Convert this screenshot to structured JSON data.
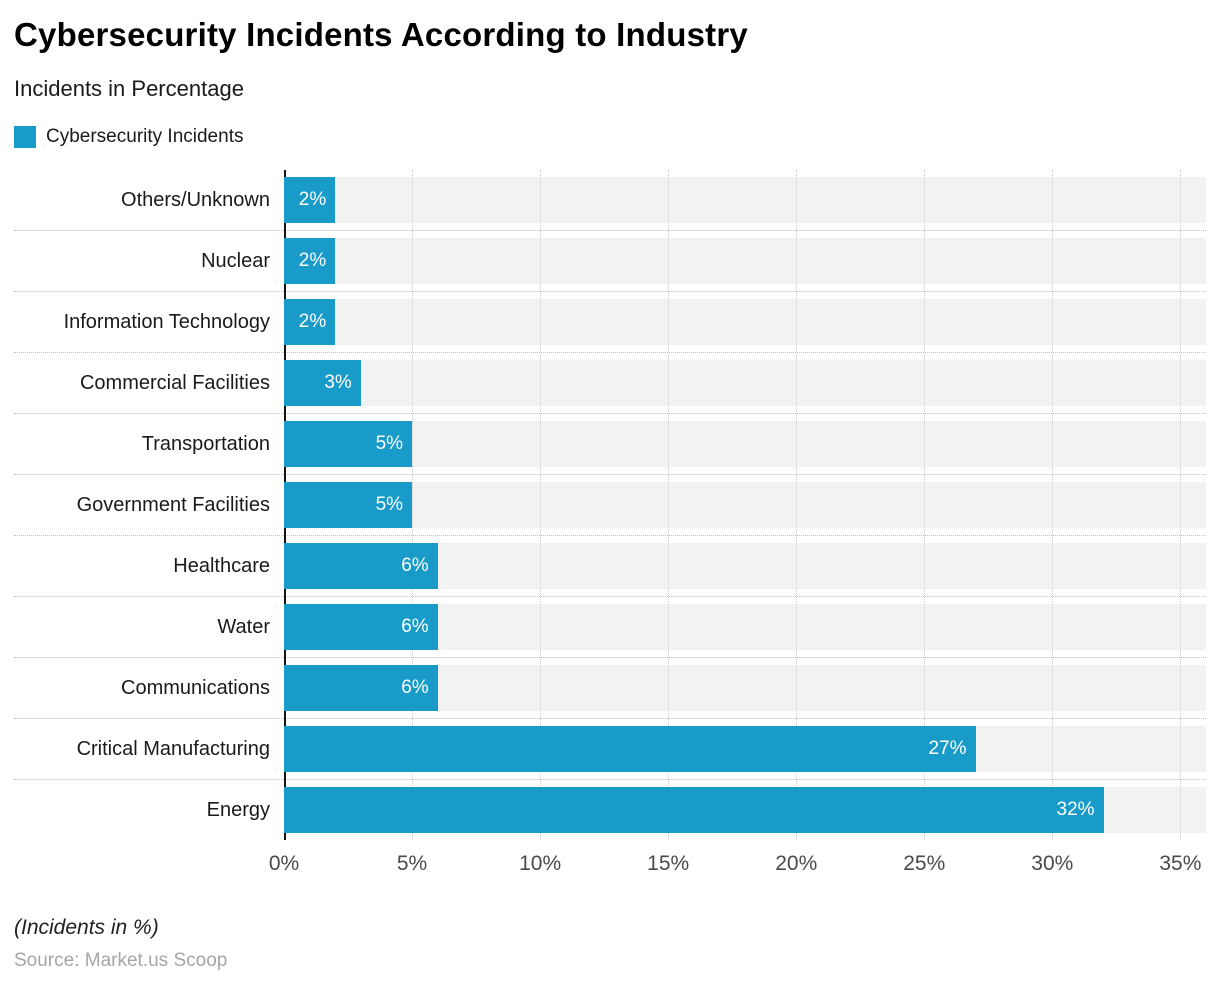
{
  "header": {
    "title": "Cybersecurity Incidents According to Industry",
    "subtitle": "Incidents in Percentage",
    "legend_label": "Cybersecurity Incidents"
  },
  "footer": {
    "note": "(Incidents in %)",
    "source": "Source: Market.us Scoop"
  },
  "colors": {
    "bar": "#189BC9",
    "row_band": "#f2f2f2",
    "axis_line": "#141414",
    "gridline": "#cccccc"
  },
  "chart_data": {
    "type": "bar",
    "orientation": "horizontal",
    "title": "Cybersecurity Incidents According to Industry",
    "subtitle": "Incidents in Percentage",
    "legend": [
      "Cybersecurity Incidents"
    ],
    "legend_position": "top-left",
    "grid": true,
    "categories": [
      "Others/Unknown",
      "Nuclear",
      "Information Technology",
      "Commercial Facilities",
      "Transportation",
      "Government Facilities",
      "Healthcare",
      "Water",
      "Communications",
      "Critical Manufacturing",
      "Energy"
    ],
    "values": [
      2,
      2,
      2,
      3,
      5,
      5,
      6,
      6,
      6,
      27,
      32
    ],
    "value_labels": [
      "2%",
      "2%",
      "2%",
      "3%",
      "5%",
      "5%",
      "6%",
      "6%",
      "6%",
      "27%",
      "32%"
    ],
    "xlabel": "",
    "ylabel": "",
    "xlim": [
      0,
      35
    ],
    "xticks": [
      0,
      5,
      10,
      15,
      20,
      25,
      30,
      35
    ],
    "xtick_labels": [
      "0%",
      "5%",
      "10%",
      "15%",
      "20%",
      "25%",
      "30%",
      "35%"
    ],
    "axis_max_render": 36
  }
}
